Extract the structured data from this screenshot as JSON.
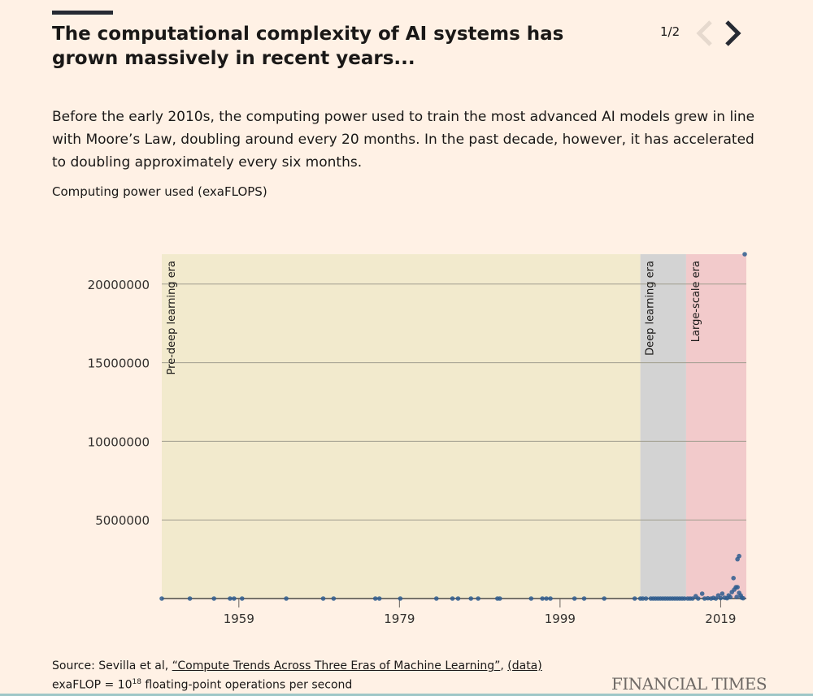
{
  "header": {
    "title": "The computational complexity of AI systems has grown massively in recent years...",
    "pager": "1/2",
    "prev_icon": "chevron-left-icon",
    "next_icon": "chevron-right-icon"
  },
  "description": "Before the early 2010s, the computing power used to train the most advanced AI models grew in line with Moore’s Law, doubling around every 20 months. In the past decade, however, it has accelerated to doubling approximately every six months.",
  "footer": {
    "source_prefix": "Source: Sevilla et al, ",
    "source_link": "“Compute Trends Across Three Eras of Machine Learning”",
    "comma": ",",
    "data_link": "(data)",
    "note_prefix": "exaFLOP = 10",
    "note_sup": "18",
    "note_suffix": " floating-point operations per second",
    "brand": "FINANCIAL TIMES"
  },
  "colors": {
    "background": "#fff1e5",
    "pre_era": "#f2eacd",
    "deep_era": "#d3d3d3",
    "large_era": "#f2cacb",
    "dots": "#2f5d8f"
  },
  "chart_data": {
    "type": "scatter",
    "ylabel": "Computing power used (exaFLOPS)",
    "xlim": [
      1949.4,
      2022.2
    ],
    "ylim": [
      0,
      21900000
    ],
    "xticks": [
      1959,
      1979,
      1999,
      2019
    ],
    "yticks": [
      5000000,
      10000000,
      15000000,
      20000000
    ],
    "grid": true,
    "eras": [
      {
        "label": "Pre-deep learning era",
        "start": 1949.4,
        "end": 2009.0
      },
      {
        "label": "Deep learning era",
        "start": 2009.0,
        "end": 2014.7
      },
      {
        "label": "Large-scale era",
        "start": 2014.7,
        "end": 2022.2
      }
    ],
    "points": [
      [
        1949.4,
        0
      ],
      [
        1952.9,
        0
      ],
      [
        1955.9,
        0
      ],
      [
        1957.9,
        0
      ],
      [
        1958.4,
        0
      ],
      [
        1959.4,
        0
      ],
      [
        1964.9,
        0
      ],
      [
        1969.5,
        0
      ],
      [
        1970.8,
        0
      ],
      [
        1976.0,
        0
      ],
      [
        1976.5,
        0
      ],
      [
        1979.1,
        0
      ],
      [
        1983.6,
        0
      ],
      [
        1985.6,
        0
      ],
      [
        1986.3,
        0
      ],
      [
        1987.9,
        0
      ],
      [
        1988.8,
        0
      ],
      [
        1991.2,
        0
      ],
      [
        1991.5,
        0
      ],
      [
        1995.4,
        0
      ],
      [
        1996.8,
        0
      ],
      [
        1997.3,
        0
      ],
      [
        1997.8,
        0
      ],
      [
        2000.8,
        0
      ],
      [
        2002.0,
        0
      ],
      [
        2004.5,
        0
      ],
      [
        2008.3,
        0
      ],
      [
        2009.0,
        0
      ],
      [
        2009.3,
        0
      ],
      [
        2009.7,
        0
      ],
      [
        2010.3,
        0
      ],
      [
        2010.6,
        0
      ],
      [
        2010.9,
        0
      ],
      [
        2011.2,
        0
      ],
      [
        2011.5,
        0
      ],
      [
        2011.8,
        0
      ],
      [
        2012.1,
        0
      ],
      [
        2012.4,
        0
      ],
      [
        2012.7,
        0
      ],
      [
        2013.0,
        0
      ],
      [
        2013.3,
        0
      ],
      [
        2013.6,
        0
      ],
      [
        2013.9,
        0
      ],
      [
        2014.2,
        0
      ],
      [
        2014.5,
        0
      ],
      [
        2014.9,
        0
      ],
      [
        2015.2,
        0
      ],
      [
        2015.5,
        0
      ],
      [
        2015.9,
        150000
      ],
      [
        2016.2,
        0
      ],
      [
        2016.7,
        310000
      ],
      [
        2017.0,
        0
      ],
      [
        2017.4,
        20000
      ],
      [
        2017.8,
        0
      ],
      [
        2018.1,
        40000
      ],
      [
        2018.4,
        0
      ],
      [
        2018.7,
        200000
      ],
      [
        2019.0,
        30000
      ],
      [
        2019.2,
        310000
      ],
      [
        2019.5,
        50000
      ],
      [
        2019.8,
        20000
      ],
      [
        2020.0,
        200000
      ],
      [
        2020.2,
        90000
      ],
      [
        2020.4,
        410000
      ],
      [
        2020.6,
        1300000
      ],
      [
        2020.7,
        570000
      ],
      [
        2020.9,
        720000
      ],
      [
        2021.0,
        100000
      ],
      [
        2021.1,
        720000
      ],
      [
        2021.1,
        2500000
      ],
      [
        2021.3,
        2700000
      ],
      [
        2021.3,
        360000
      ],
      [
        2021.5,
        200000
      ],
      [
        2021.6,
        60000
      ],
      [
        2021.8,
        20000
      ],
      [
        2022.0,
        21900000
      ]
    ]
  }
}
